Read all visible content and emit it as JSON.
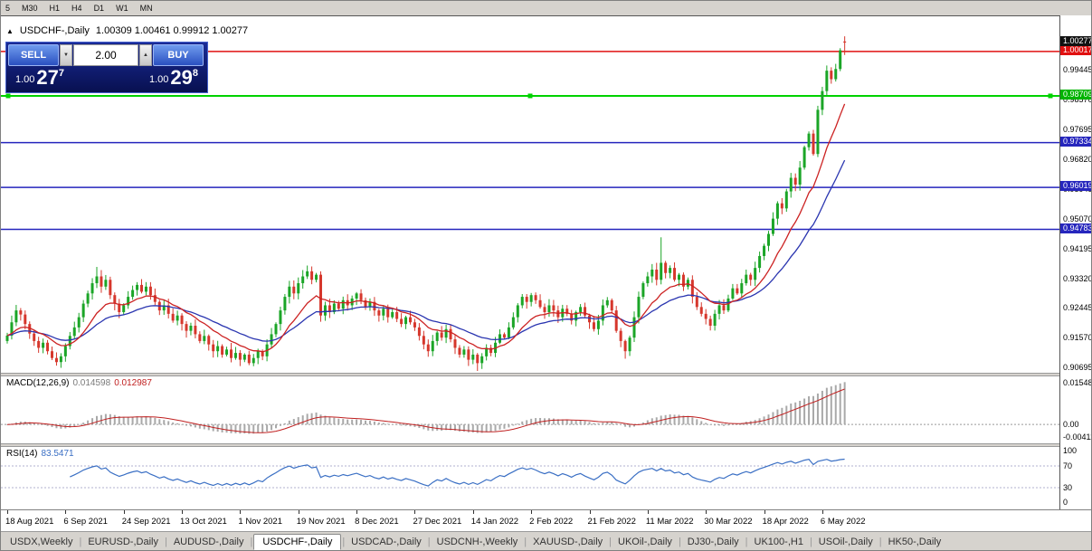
{
  "toolbar": {
    "timeframes": [
      "5",
      "M30",
      "H1",
      "H4",
      "D1",
      "W1",
      "MN"
    ]
  },
  "chart": {
    "title_marker": "▲",
    "symbol": "USDCHF-,Daily",
    "ohlc": "1.00309 1.00461 0.99912 1.00277",
    "current_price": {
      "text": "1.00277",
      "bg": "#111111"
    },
    "price_axis": {
      "grid_labels": [
        "1.00320",
        "0.99445",
        "0.98570",
        "0.97695",
        "0.96820",
        "0.95945",
        "0.95070",
        "0.94195",
        "0.93320",
        "0.92445",
        "0.91570",
        "0.90695"
      ]
    },
    "trade_panel": {
      "sell_label": "SELL",
      "buy_label": "BUY",
      "volume_value": "2.00",
      "step_down_icon": "▼",
      "step_up_icon": "▲",
      "sell_price_small": "1.00",
      "sell_price_big": "27",
      "sell_price_sup": "7",
      "buy_price_small": "1.00",
      "buy_price_big": "29",
      "buy_price_sup": "8"
    }
  },
  "chart_data": {
    "type": "candlestick",
    "symbol": "USDCHF-",
    "timeframe": "Daily",
    "x_labels": [
      "18 Aug 2021",
      "6 Sep 2021",
      "24 Sep 2021",
      "13 Oct 2021",
      "1 Nov 2021",
      "19 Nov 2021",
      "8 Dec 2021",
      "27 Dec 2021",
      "14 Jan 2022",
      "2 Feb 2022",
      "21 Feb 2022",
      "11 Mar 2022",
      "30 Mar 2022",
      "18 Apr 2022",
      "6 May 2022"
    ],
    "x_label_step": 13,
    "first_open": 0.915,
    "closes": [
      0.9166,
      0.9205,
      0.924,
      0.9228,
      0.92,
      0.9172,
      0.915,
      0.913,
      0.9145,
      0.912,
      0.91,
      0.9088,
      0.9105,
      0.9135,
      0.9165,
      0.919,
      0.922,
      0.926,
      0.929,
      0.932,
      0.934,
      0.931,
      0.933,
      0.9285,
      0.926,
      0.9235,
      0.9255,
      0.928,
      0.93,
      0.9315,
      0.9295,
      0.931,
      0.9285,
      0.9265,
      0.924,
      0.9255,
      0.923,
      0.921,
      0.9225,
      0.92,
      0.918,
      0.9195,
      0.917,
      0.915,
      0.9165,
      0.914,
      0.912,
      0.9135,
      0.911,
      0.9125,
      0.91,
      0.9115,
      0.9095,
      0.911,
      0.9085,
      0.91,
      0.912,
      0.9105,
      0.914,
      0.917,
      0.92,
      0.924,
      0.928,
      0.931,
      0.929,
      0.932,
      0.934,
      0.9355,
      0.933,
      0.9345,
      0.9225,
      0.9255,
      0.9235,
      0.926,
      0.9245,
      0.927,
      0.9255,
      0.9275,
      0.929,
      0.927,
      0.925,
      0.9265,
      0.924,
      0.9225,
      0.9245,
      0.922,
      0.9235,
      0.9215,
      0.92,
      0.922,
      0.9205,
      0.919,
      0.9165,
      0.914,
      0.912,
      0.915,
      0.9175,
      0.916,
      0.9185,
      0.9155,
      0.913,
      0.911,
      0.9125,
      0.9095,
      0.911,
      0.9085,
      0.9105,
      0.913,
      0.9115,
      0.9145,
      0.917,
      0.916,
      0.919,
      0.922,
      0.9255,
      0.928,
      0.9265,
      0.9285,
      0.927,
      0.925,
      0.9235,
      0.9255,
      0.924,
      0.922,
      0.9245,
      0.923,
      0.921,
      0.9235,
      0.925,
      0.9225,
      0.9205,
      0.9185,
      0.921,
      0.9255,
      0.927,
      0.924,
      0.918,
      0.915,
      0.912,
      0.916,
      0.922,
      0.928,
      0.932,
      0.934,
      0.936,
      0.933,
      0.938,
      0.935,
      0.9365,
      0.933,
      0.9345,
      0.931,
      0.933,
      0.928,
      0.925,
      0.923,
      0.9215,
      0.9195,
      0.923,
      0.9255,
      0.924,
      0.9275,
      0.9305,
      0.929,
      0.932,
      0.9345,
      0.933,
      0.9365,
      0.94,
      0.943,
      0.9465,
      0.951,
      0.9555,
      0.954,
      0.959,
      0.963,
      0.961,
      0.966,
      0.972,
      0.976,
      0.97,
      0.983,
      0.9885,
      0.9945,
      0.992,
      0.995,
      1.0005,
      1.00277
    ],
    "wick_overrides": [
      {
        "index": 20,
        "high": 0.9368
      },
      {
        "index": 67,
        "high": 0.9372
      },
      {
        "index": 105,
        "low": 0.9062
      },
      {
        "index": 138,
        "low": 0.9098
      },
      {
        "index": 146,
        "high": 0.9455
      }
    ],
    "last_candle": {
      "open": 1.00309,
      "high": 1.00461,
      "low": 0.99912,
      "close": 1.00277
    },
    "hlines": [
      {
        "price": 1.00017,
        "text": "1.00017",
        "color": "#e01010",
        "badge": "#e01010",
        "width": 1.5
      },
      {
        "price": 0.98709,
        "text": "0.98709",
        "color": "#00d200",
        "badge": "#00b400",
        "width": 2,
        "selected": true
      },
      {
        "price": 0.97334,
        "text": "0.97334",
        "color": "#2626bd",
        "badge": "#2626bd",
        "width": 1.5
      },
      {
        "price": 0.96019,
        "text": "0.96019",
        "color": "#2626bd",
        "badge": "#2626bd",
        "width": 1.5
      },
      {
        "price": 0.94783,
        "text": "0.94783",
        "color": "#2626bd",
        "badge": "#2626bd",
        "width": 1.5
      }
    ],
    "overlays": [
      {
        "name": "ma-fast",
        "period": 12,
        "color": "#cc2222"
      },
      {
        "name": "ma-slow",
        "period": 26,
        "color": "#2a35b0"
      }
    ]
  },
  "macd": {
    "label": "MACD(12,26,9)",
    "value_main": "0.014598",
    "value_signal": "0.012987",
    "axis_labels": [
      "0.01548",
      "0.00",
      "-0.00411"
    ]
  },
  "rsi": {
    "label": "RSI(14)",
    "value": "83.5471",
    "axis_labels": [
      "100",
      "70",
      "30",
      "0"
    ],
    "levels": [
      70,
      30
    ]
  },
  "tabs": {
    "items": [
      "USDX,Weekly",
      "EURUSD-,Daily",
      "AUDUSD-,Daily",
      "USDCHF-,Daily",
      "USDCAD-,Daily",
      "USDCNH-,Weekly",
      "XAUUSD-,Daily",
      "UKOil-,Daily",
      "DJ30-,Daily",
      "UK100-,H1",
      "USOil-,Daily",
      "HK50-,Daily"
    ],
    "active_index": 3
  }
}
